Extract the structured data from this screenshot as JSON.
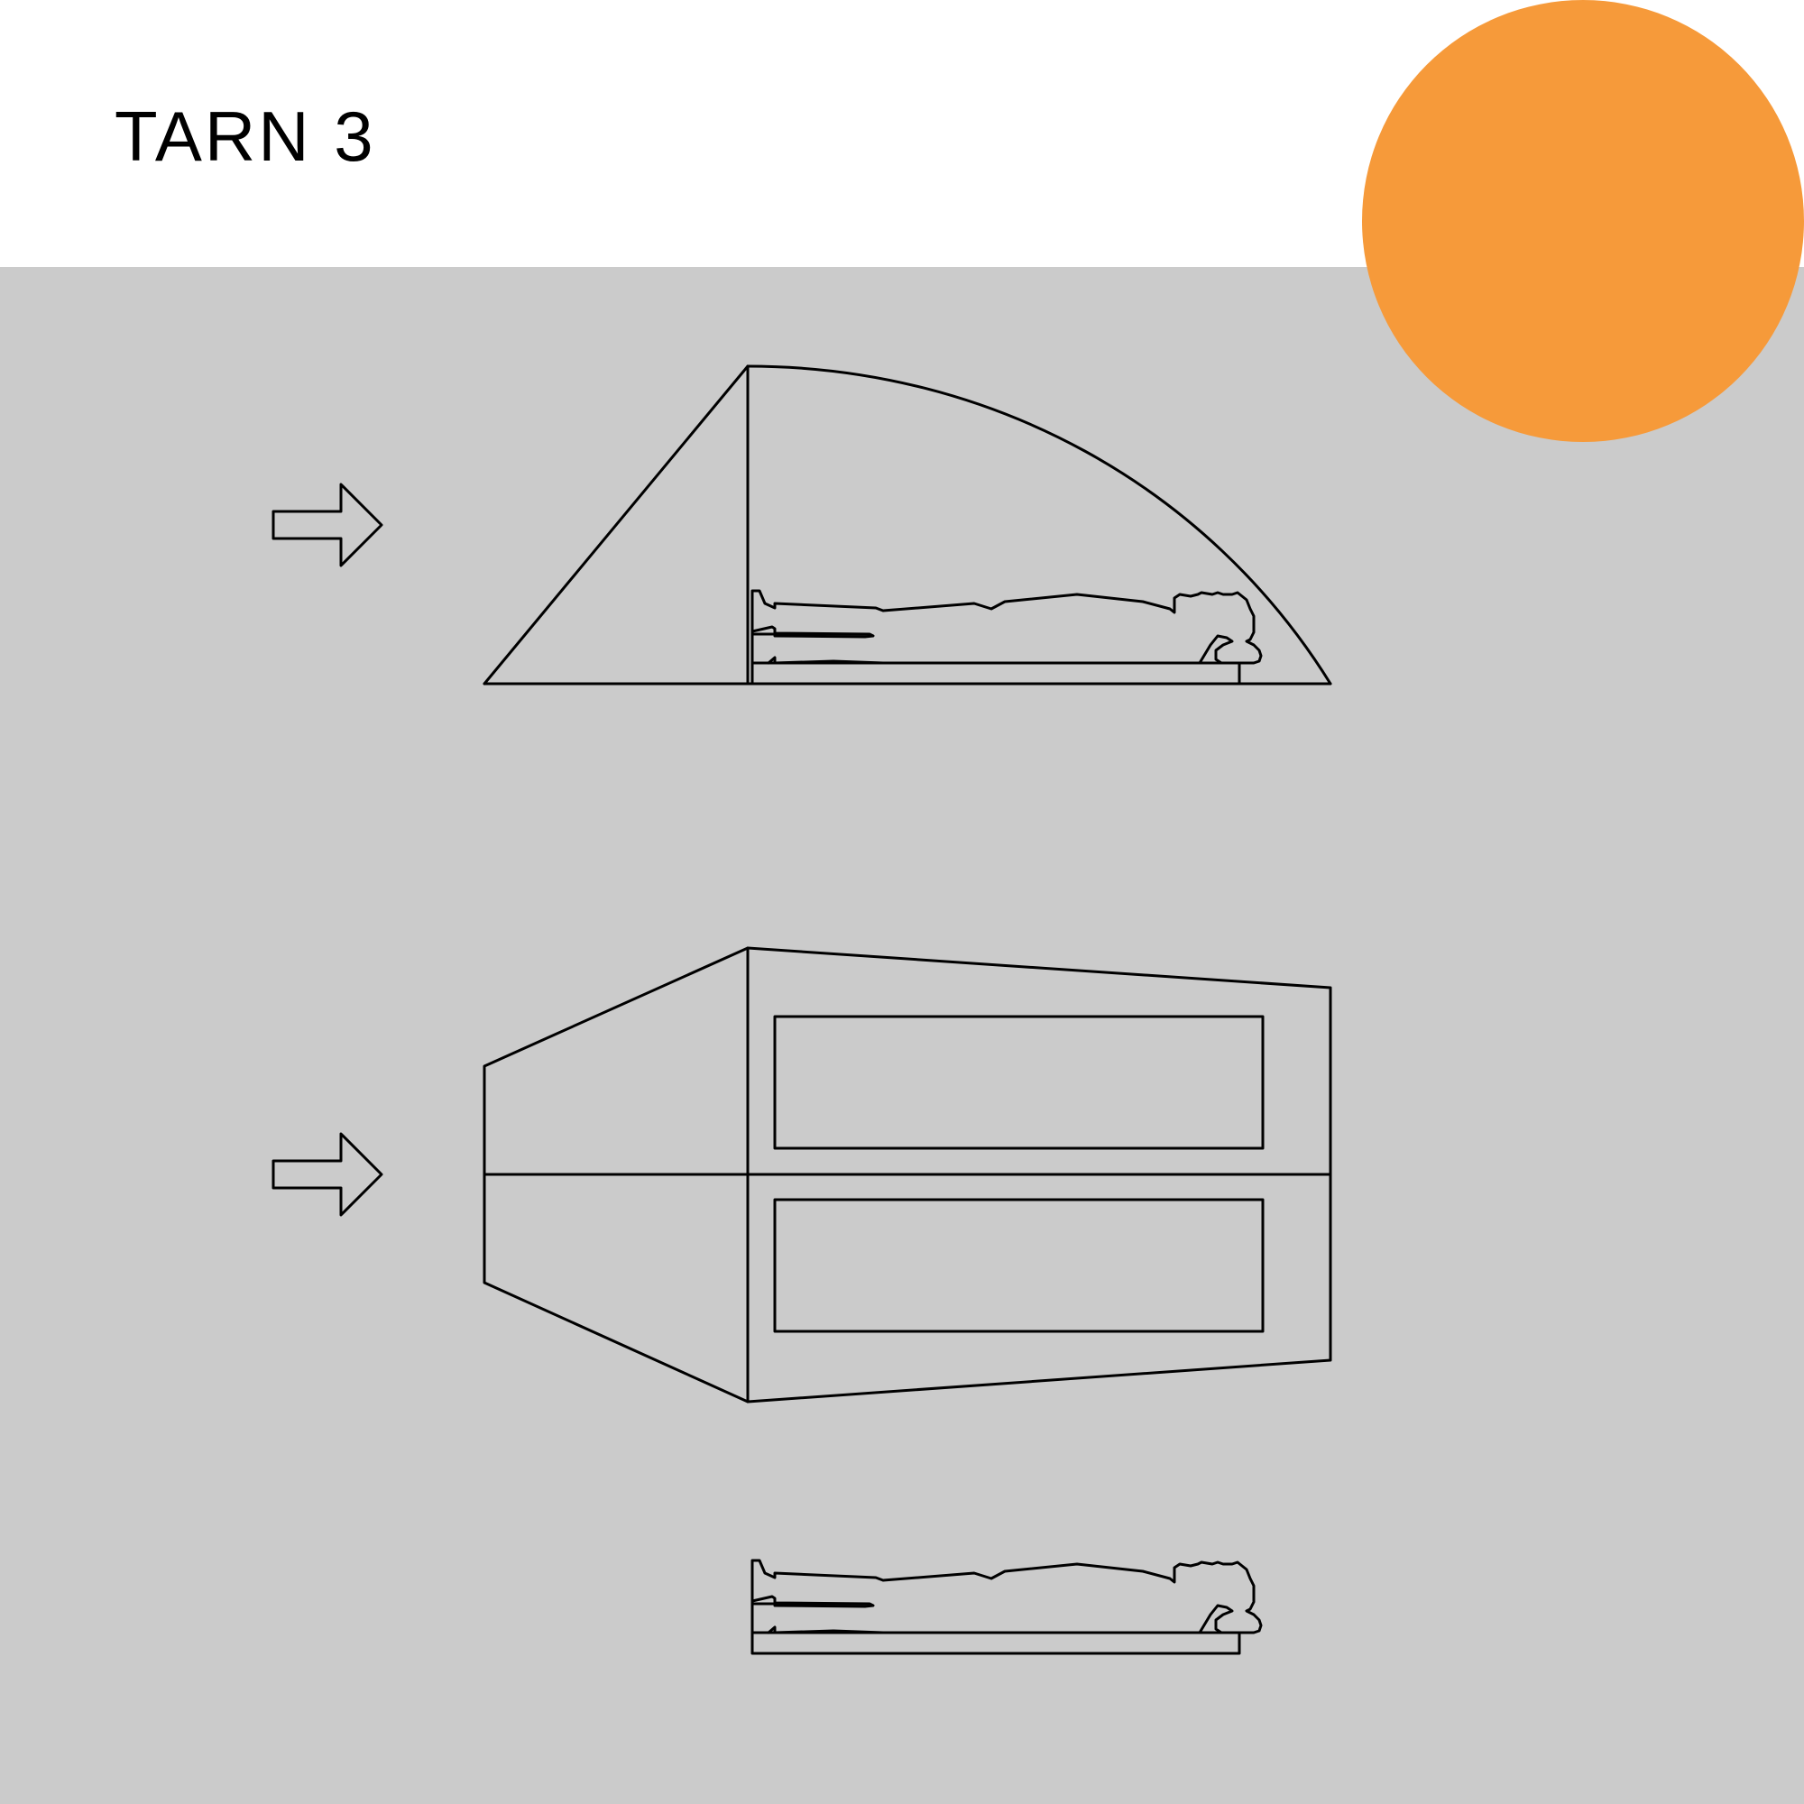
{
  "title": "TARN 3",
  "colors": {
    "panel": "#cbcbcb",
    "accent": "#f69a3a",
    "line": "#000000"
  },
  "icons": {
    "direction_arrows": "arrow-right-icon",
    "sleeper": "person-lying-icon"
  }
}
